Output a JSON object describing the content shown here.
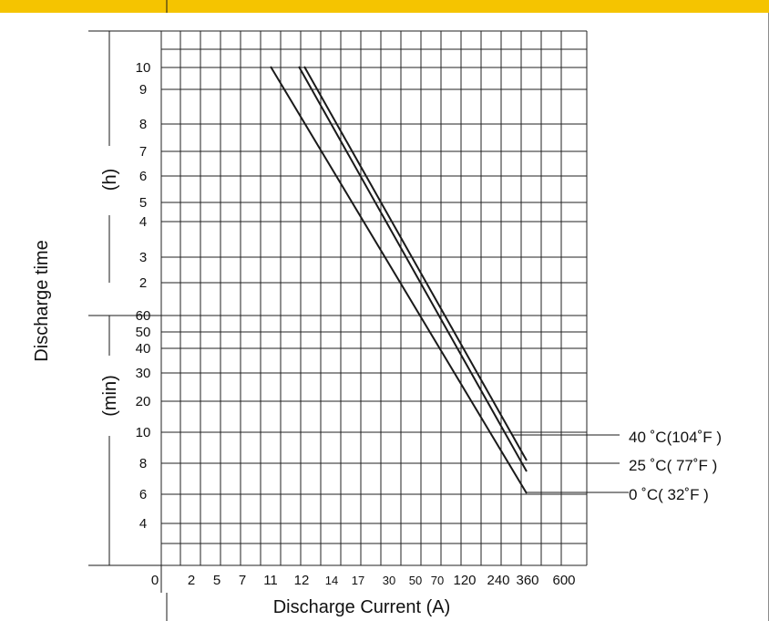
{
  "colors": {
    "topbar": "#F5C400",
    "ink": "#1a1a1a",
    "grid": "#222222"
  },
  "chart_data": {
    "type": "line",
    "title": "",
    "xlabel": "Discharge Current (A)",
    "ylabel": "Discharge time",
    "yunit_hours": "(h)",
    "yunit_minutes": "(min)",
    "x_ticks": [
      "0",
      "2",
      "5",
      "7",
      "11",
      "12",
      "14",
      "17",
      "30",
      "50",
      "70",
      "120",
      "240",
      "360",
      "600"
    ],
    "y_ticks_hours": [
      "10",
      "9",
      "8",
      "7",
      "6",
      "5",
      "4",
      "3",
      "2"
    ],
    "y_ticks_minutes": [
      "60",
      "50",
      "40",
      "30",
      "20",
      "10",
      "8",
      "6",
      "4"
    ],
    "grid": true,
    "series": [
      {
        "name": "40 ˚C(104˚F )",
        "points": [
          {
            "x": "12",
            "y": "10 h"
          },
          {
            "x": "360",
            "y": "8 min"
          }
        ]
      },
      {
        "name": "25 ˚C( 77˚F )",
        "points": [
          {
            "x": "11",
            "y": "10 h"
          },
          {
            "x": "360",
            "y": "7.5 min"
          }
        ]
      },
      {
        "name": "0 ˚C( 32˚F )",
        "points": [
          {
            "x": "11",
            "y": "10 h"
          },
          {
            "x": "360",
            "y": "6 min"
          }
        ]
      }
    ]
  }
}
